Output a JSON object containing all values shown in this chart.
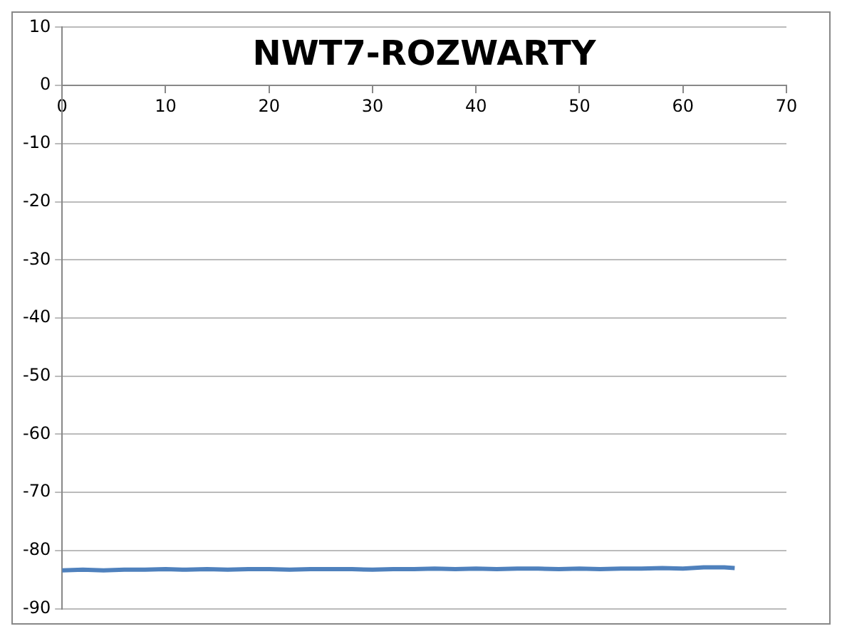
{
  "chart_data": {
    "type": "line",
    "title": "NWT7-ROZWARTY",
    "series": [
      {
        "color": "#4f81bd",
        "x": [
          0,
          2,
          4,
          6,
          8,
          10,
          12,
          14,
          16,
          18,
          20,
          22,
          24,
          26,
          28,
          30,
          32,
          34,
          36,
          38,
          40,
          42,
          44,
          46,
          48,
          50,
          52,
          54,
          56,
          58,
          60,
          62,
          64,
          65
        ],
        "values": [
          -83.4,
          -83.3,
          -83.4,
          -83.3,
          -83.3,
          -83.2,
          -83.3,
          -83.2,
          -83.3,
          -83.2,
          -83.2,
          -83.3,
          -83.2,
          -83.2,
          -83.2,
          -83.3,
          -83.2,
          -83.2,
          -83.1,
          -83.2,
          -83.1,
          -83.2,
          -83.1,
          -83.1,
          -83.2,
          -83.1,
          -83.2,
          -83.1,
          -83.1,
          -83.0,
          -83.1,
          -82.9,
          -82.9,
          -83.0
        ]
      }
    ],
    "xlim": [
      0,
      70
    ],
    "xticks": [
      0,
      10,
      20,
      30,
      40,
      50,
      60,
      70
    ],
    "ylim": [
      -90,
      10
    ],
    "yticks": [
      -90,
      -80,
      -70,
      -60,
      -50,
      -40,
      -30,
      -20,
      -10,
      0,
      10
    ],
    "grid": "y",
    "marker": "none",
    "line_style": "solid",
    "legend": false
  }
}
